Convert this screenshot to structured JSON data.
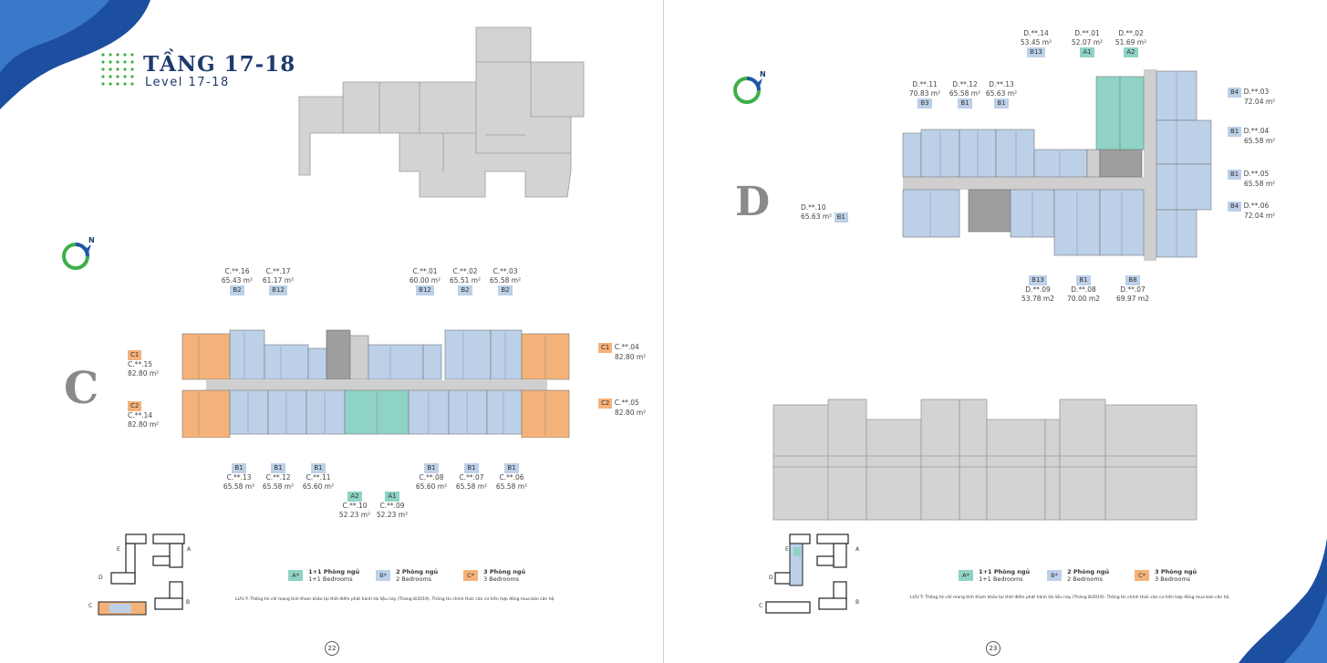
{
  "header": {
    "title": "TẦNG 17-18",
    "subtitle": "Level 17-18"
  },
  "colors": {
    "brand_navy": "#1e3a6e",
    "one_bed": "#8fd3c6",
    "two_bed": "#bcd0e8",
    "three_bed": "#f4b27a",
    "grey_block": "#d3d3d3",
    "wave_blue": "#1d4fa0"
  },
  "icons": {
    "compass": "compass-north-icon"
  },
  "left_page": {
    "block_letter": "C",
    "compass_label": "N",
    "page_number": "22",
    "units_top": [
      {
        "code": "C.**.16",
        "area": "65.43 m²",
        "type": "B2"
      },
      {
        "code": "C.**.17",
        "area": "61.17 m²",
        "type": "B12"
      },
      {
        "code": "C.**.01",
        "area": "60.00 m²",
        "type": "B12"
      },
      {
        "code": "C.**.02",
        "area": "65.51 m²",
        "type": "B2"
      },
      {
        "code": "C.**.03",
        "area": "65.58 m²",
        "type": "B2"
      }
    ],
    "units_left": [
      {
        "code": "C.**.15",
        "area": "82.80 m²",
        "type": "C1"
      },
      {
        "code": "C.**.14",
        "area": "82.80 m²",
        "type": "C2"
      }
    ],
    "units_right": [
      {
        "code": "C.**.04",
        "area": "82.80 m²",
        "type": "C1"
      },
      {
        "code": "C.**.05",
        "area": "82.80 m²",
        "type": "C2"
      }
    ],
    "units_bottom": [
      {
        "code": "C.**.13",
        "area": "65.58 m²",
        "type": "B1"
      },
      {
        "code": "C.**.12",
        "area": "65.58 m²",
        "type": "B1"
      },
      {
        "code": "C.**.11",
        "area": "65.60 m²",
        "type": "B1"
      },
      {
        "code": "C.**.10",
        "area": "52.23 m²",
        "type": "A2"
      },
      {
        "code": "C.**.09",
        "area": "52.23 m²",
        "type": "A1"
      },
      {
        "code": "C.**.08",
        "area": "65.60 m²",
        "type": "B1"
      },
      {
        "code": "C.**.07",
        "area": "65.58 m²",
        "type": "B1"
      },
      {
        "code": "C.**.06",
        "area": "65.58 m²",
        "type": "B1"
      }
    ]
  },
  "right_page": {
    "block_letter": "D",
    "compass_label": "N",
    "page_number": "23",
    "units_top": [
      {
        "code": "D.**.14",
        "area": "53.45 m²",
        "type": "B13"
      },
      {
        "code": "D.**.01",
        "area": "52.07 m²",
        "type": "A1"
      },
      {
        "code": "D.**.02",
        "area": "51.69 m²",
        "type": "A2"
      },
      {
        "code": "D.**.11",
        "area": "70.83 m²",
        "type": "B3"
      },
      {
        "code": "D.**.12",
        "area": "65.58 m²",
        "type": "B1"
      },
      {
        "code": "D.**.13",
        "area": "65.63 m²",
        "type": "B1"
      }
    ],
    "units_right": [
      {
        "code": "D.**.03",
        "area": "72.04 m²",
        "type": "B4"
      },
      {
        "code": "D.**.04",
        "area": "65.58 m²",
        "type": "B1"
      },
      {
        "code": "D.**.05",
        "area": "65.58 m²",
        "type": "B1"
      },
      {
        "code": "D.**.06",
        "area": "72.04 m²",
        "type": "B4"
      }
    ],
    "units_left": [
      {
        "code": "D.**.10",
        "area": "65.63 m²",
        "type": "B1"
      }
    ],
    "units_bottom": [
      {
        "code": "D.**.09",
        "area": "53.78 m2",
        "type": "B13"
      },
      {
        "code": "D.**.08",
        "area": "70.00 m2",
        "type": "B1"
      },
      {
        "code": "D.**.07",
        "area": "69.97 m2",
        "type": "B8"
      }
    ]
  },
  "legend": [
    {
      "swatch": "A*",
      "vi": "1+1 Phòng ngủ",
      "en": "1+1 Bedrooms",
      "kind": "a"
    },
    {
      "swatch": "B*",
      "vi": "2 Phòng ngủ",
      "en": "2 Bedrooms",
      "kind": "b"
    },
    {
      "swatch": "C*",
      "vi": "3 Phòng ngủ",
      "en": "3 Bedrooms",
      "kind": "c"
    }
  ],
  "key_letters": {
    "a": "A",
    "b": "B",
    "c": "C",
    "d": "D",
    "e": "E"
  },
  "note": "LƯU Ý: Thông tin chỉ mang tính tham khảo tại thời điểm phát hành tài liệu này (Tháng 8/2019). Thông tin chính thức căn cứ trên hợp đồng mua bán căn hộ."
}
